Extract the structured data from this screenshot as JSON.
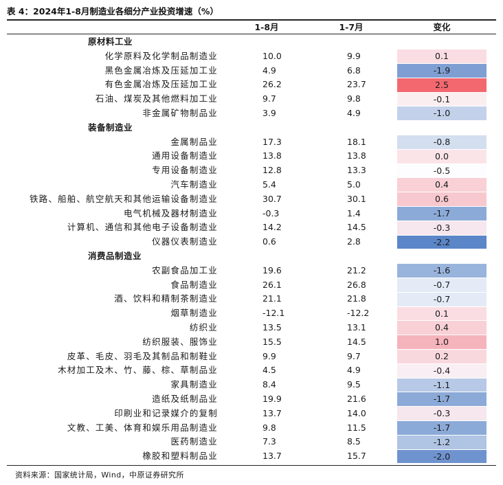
{
  "title": "表 4：2024年1-8月制造业各细分产业投资增速（%）",
  "headers": {
    "col1": "1-8月",
    "col2": "1-7月",
    "col3": "变化"
  },
  "rows": [
    {
      "type": "cat",
      "label": "原材料工业"
    },
    {
      "label": "化学原料及化学制品制造业",
      "v1": "10.0",
      "v2": "9.9",
      "chg": "0.1",
      "color": "#fadde2"
    },
    {
      "label": "黑色金属冶炼及压延加工业",
      "v1": "4.9",
      "v2": "6.8",
      "chg": "-1.9",
      "color": "#7f9fd3"
    },
    {
      "label": "有色金属冶炼及压延加工业",
      "v1": "26.2",
      "v2": "23.7",
      "chg": "2.5",
      "color": "#f3686f"
    },
    {
      "label": "石油、煤炭及其他燃料加工业",
      "v1": "9.7",
      "v2": "9.8",
      "chg": "-0.1",
      "color": "#fbeef1"
    },
    {
      "label": "非金属矿物制品业",
      "v1": "3.9",
      "v2": "4.9",
      "chg": "-1.0",
      "color": "#c3d1ea"
    },
    {
      "type": "cat",
      "label": "装备制造业"
    },
    {
      "label": "金属制品业",
      "v1": "17.3",
      "v2": "18.1",
      "chg": "-0.8",
      "color": "#d3deef"
    },
    {
      "label": "通用设备制造业",
      "v1": "13.8",
      "v2": "13.8",
      "chg": "0.0",
      "color": "#fbe4e8"
    },
    {
      "label": "专用设备制造业",
      "v1": "12.8",
      "v2": "13.3",
      "chg": "-0.5",
      "color": "#fdfdff"
    },
    {
      "label": "汽车制造业",
      "v1": "5.4",
      "v2": "5.0",
      "chg": "0.4",
      "color": "#f8d0d5"
    },
    {
      "label": "铁路、船舶、航空航天和其他运输设备制造业",
      "v1": "30.7",
      "v2": "30.1",
      "chg": "0.6",
      "color": "#f7c8ce"
    },
    {
      "label": "电气机械及器材制造业",
      "v1": "-0.3",
      "v2": "1.4",
      "chg": "-1.7",
      "color": "#8caad8"
    },
    {
      "label": "计算机、通信和其他电子设备制造业",
      "v1": "14.2",
      "v2": "14.5",
      "chg": "-0.3",
      "color": "#f6e6ed"
    },
    {
      "label": "仪器仪表制造业",
      "v1": "0.6",
      "v2": "2.8",
      "chg": "-2.2",
      "color": "#5b86c8"
    },
    {
      "type": "cat",
      "label": "消费品制造业"
    },
    {
      "label": "农副食品加工业",
      "v1": "19.6",
      "v2": "21.2",
      "chg": "-1.6",
      "color": "#99b4dc"
    },
    {
      "label": "食品制造业",
      "v1": "26.1",
      "v2": "26.8",
      "chg": "-0.7",
      "color": "#e4ebf6"
    },
    {
      "label": "酒、饮料和精制茶制造业",
      "v1": "21.1",
      "v2": "21.8",
      "chg": "-0.7",
      "color": "#e4ebf6"
    },
    {
      "label": "烟草制造业",
      "v1": "-12.1",
      "v2": "-12.2",
      "chg": "0.1",
      "color": "#fadde2"
    },
    {
      "label": "纺织业",
      "v1": "13.5",
      "v2": "13.1",
      "chg": "0.4",
      "color": "#f8d0d5"
    },
    {
      "label": "纺织服装、服饰业",
      "v1": "15.5",
      "v2": "14.5",
      "chg": "1.0",
      "color": "#f5b3bb"
    },
    {
      "label": "皮革、毛皮、羽毛及其制品和制鞋业",
      "v1": "9.9",
      "v2": "9.7",
      "chg": "0.2",
      "color": "#f9d8dd"
    },
    {
      "label": "木材加工及木、竹、藤、棕、草制品业",
      "v1": "4.5",
      "v2": "4.9",
      "chg": "-0.4",
      "color": "#f9eef3"
    },
    {
      "label": "家具制造业",
      "v1": "8.4",
      "v2": "9.5",
      "chg": "-1.1",
      "color": "#b7c9e6"
    },
    {
      "label": "造纸及纸制品业",
      "v1": "19.9",
      "v2": "21.6",
      "chg": "-1.7",
      "color": "#8caad8"
    },
    {
      "label": "印刷业和记录媒介的复制",
      "v1": "13.7",
      "v2": "14.0",
      "chg": "-0.3",
      "color": "#f6e6ed"
    },
    {
      "label": "文教、工美、体育和娱乐用品制造业",
      "v1": "9.8",
      "v2": "11.5",
      "chg": "-1.7",
      "color": "#8caad8"
    },
    {
      "label": "医药制造业",
      "v1": "7.3",
      "v2": "8.5",
      "chg": "-1.2",
      "color": "#b0c4e3"
    },
    {
      "label": "橡胶和塑料制品业",
      "v1": "13.7",
      "v2": "15.7",
      "chg": "-2.0",
      "color": "#6f93cf"
    }
  ],
  "source": "资料来源：国家统计局，Wind，中原证券研究所"
}
